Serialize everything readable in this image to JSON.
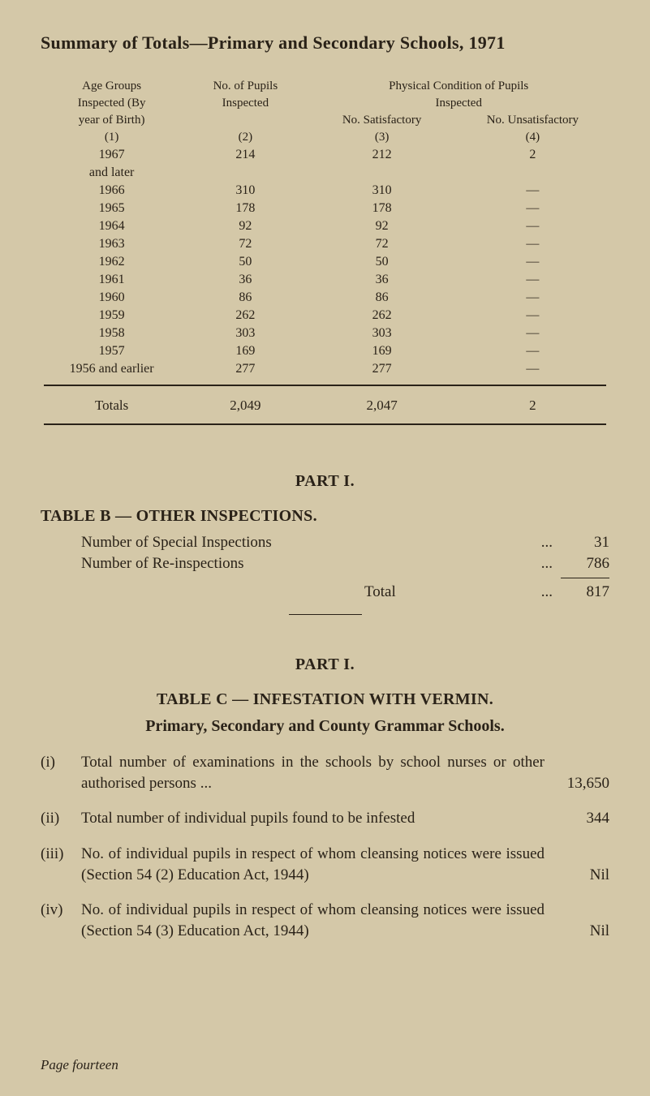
{
  "title": "Summary of Totals—Primary and Secondary Schools, 1971",
  "summary": {
    "headers": {
      "col1_l1": "Age Groups",
      "col1_l2": "Inspected (By",
      "col1_l3": "year of Birth)",
      "col1_l4": "(1)",
      "col2_l1": "No. of Pupils",
      "col2_l2": "Inspected",
      "col2_l3": "(2)",
      "col34_l1": "Physical Condition of Pupils",
      "col34_l2": "Inspected",
      "col3_l3": "No. Satisfactory",
      "col3_l4": "(3)",
      "col4_l3": "No. Unsatisfactory",
      "col4_l4": "(4)"
    },
    "rows": [
      {
        "year": "1967",
        "inspected": "214",
        "satisfactory": "212",
        "unsatisfactory": "2"
      },
      {
        "year": "and later",
        "inspected": "",
        "satisfactory": "",
        "unsatisfactory": ""
      },
      {
        "year": "1966",
        "inspected": "310",
        "satisfactory": "310",
        "unsatisfactory": "—"
      },
      {
        "year": "1965",
        "inspected": "178",
        "satisfactory": "178",
        "unsatisfactory": "—"
      },
      {
        "year": "1964",
        "inspected": "92",
        "satisfactory": "92",
        "unsatisfactory": "—"
      },
      {
        "year": "1963",
        "inspected": "72",
        "satisfactory": "72",
        "unsatisfactory": "—"
      },
      {
        "year": "1962",
        "inspected": "50",
        "satisfactory": "50",
        "unsatisfactory": "—"
      },
      {
        "year": "1961",
        "inspected": "36",
        "satisfactory": "36",
        "unsatisfactory": "—"
      },
      {
        "year": "1960",
        "inspected": "86",
        "satisfactory": "86",
        "unsatisfactory": "—"
      },
      {
        "year": "1959",
        "inspected": "262",
        "satisfactory": "262",
        "unsatisfactory": "—"
      },
      {
        "year": "1958",
        "inspected": "303",
        "satisfactory": "303",
        "unsatisfactory": "—"
      },
      {
        "year": "1957",
        "inspected": "169",
        "satisfactory": "169",
        "unsatisfactory": "—"
      },
      {
        "year": "1956 and earlier",
        "inspected": "277",
        "satisfactory": "277",
        "unsatisfactory": "—"
      }
    ],
    "totals": {
      "label": "Totals",
      "inspected": "2,049",
      "satisfactory": "2,047",
      "unsatisfactory": "2"
    }
  },
  "part1a": {
    "heading": "PART I.",
    "table_b_heading": "TABLE B — OTHER INSPECTIONS.",
    "rows": [
      {
        "label": "Number of Special Inspections",
        "dots": "...",
        "value": "31"
      },
      {
        "label": "Number of Re-inspections",
        "dots": "...",
        "value": "786"
      }
    ],
    "total_label": "Total",
    "total_dots": "...",
    "total_value": "817"
  },
  "part1b": {
    "heading": "PART I.",
    "table_c_heading": "TABLE C — INFESTATION WITH VERMIN.",
    "subheading": "Primary, Secondary and County Grammar Schools.",
    "items": [
      {
        "marker": "(i)",
        "text": "Total number of examinations in the schools by school nurses or other authorised persons ...",
        "value": "13,650"
      },
      {
        "marker": "(ii)",
        "text": "Total number of individual pupils found to be infested",
        "value": "344",
        "trailing": "..."
      },
      {
        "marker": "(iii)",
        "text": "No. of individual pupils in respect of whom cleansing notices were issued (Section 54 (2) Education Act, 1944)",
        "value": "Nil",
        "trailing": "..."
      },
      {
        "marker": "(iv)",
        "text": "No. of individual pupils in respect of whom cleansing notices were issued (Section 54 (3) Education Act, 1944)",
        "value": "Nil",
        "trailing": "..."
      }
    ]
  },
  "footer": {
    "page_label": "Page",
    "page_value": "fourteen"
  }
}
